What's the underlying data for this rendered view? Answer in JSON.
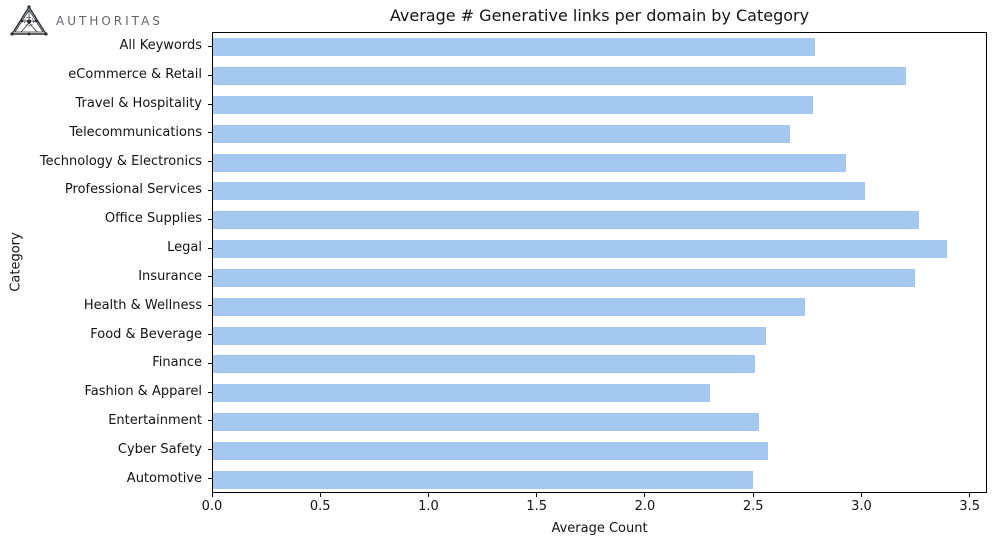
{
  "logo": {
    "text": "AUTHORITAS",
    "icon": "authoritas-triangle-network-logo",
    "text_color": "#63666b"
  },
  "chart_data": {
    "type": "bar",
    "orientation": "horizontal",
    "title": "Average # Generative links per domain by Category",
    "xlabel": "Average Count",
    "ylabel": "Category",
    "xlim": [
      0,
      3.58
    ],
    "grid": false,
    "legend": null,
    "bar_color": "#a4c8ef",
    "xticks": [
      {
        "value": 0.0,
        "label": "0.0"
      },
      {
        "value": 0.5,
        "label": "0.5"
      },
      {
        "value": 1.0,
        "label": "1.0"
      },
      {
        "value": 1.5,
        "label": "1.5"
      },
      {
        "value": 2.0,
        "label": "2.0"
      },
      {
        "value": 2.5,
        "label": "2.5"
      },
      {
        "value": 3.0,
        "label": "3.0"
      },
      {
        "value": 3.5,
        "label": "3.5"
      }
    ],
    "categories": [
      "All Keywords",
      "eCommerce & Retail",
      "Travel & Hospitality",
      "Telecommunications",
      "Technology & Electronics",
      "Professional Services",
      "Office Supplies",
      "Legal",
      "Insurance",
      "Health & Wellness",
      "Food & Beverage",
      "Finance",
      "Fashion & Apparel",
      "Entertainment",
      "Cyber Safety",
      "Automotive"
    ],
    "values": [
      2.79,
      3.21,
      2.78,
      2.67,
      2.93,
      3.02,
      3.27,
      3.4,
      3.25,
      2.74,
      2.56,
      2.51,
      2.3,
      2.53,
      2.57,
      2.5
    ]
  }
}
